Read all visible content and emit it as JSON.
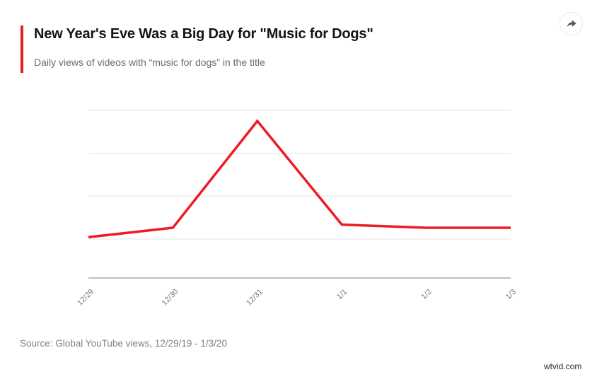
{
  "header": {
    "title": "New Year's Eve Was a Big Day for \"Music for Dogs\"",
    "subtitle": "Daily views of videos with “music for dogs” in the title"
  },
  "toolbar": {
    "share_icon": "share-arrow"
  },
  "chart_data": {
    "type": "line",
    "title": "New Year's Eve Was a Big Day for \"Music for Dogs\"",
    "subtitle": "Daily views of videos with “music for dogs” in the title",
    "categories": [
      "12/29",
      "12/30",
      "12/31",
      "1/1",
      "1/2",
      "1/3"
    ],
    "series": [
      {
        "name": "Daily views of videos with “music for dogs” in the title",
        "values": [
          0.26,
          0.32,
          1.0,
          0.34,
          0.32,
          0.32
        ]
      }
    ],
    "value_scale": "relative units; y-axis has no labels in the chart, 1.0 = peak day (12/31)",
    "xlabel": "",
    "ylabel": "",
    "ylim": [
      0,
      1.07
    ],
    "grid": true,
    "legend": false,
    "line_color": "#ed1c24",
    "grid_color": "#e3e3e3",
    "axis_color": "#9a9a9a",
    "tick_label_color": "#767676"
  },
  "footer": {
    "source": "Source: Global YouTube views, 12/29/19 - 1/3/20"
  },
  "watermark": "wtvid.com"
}
